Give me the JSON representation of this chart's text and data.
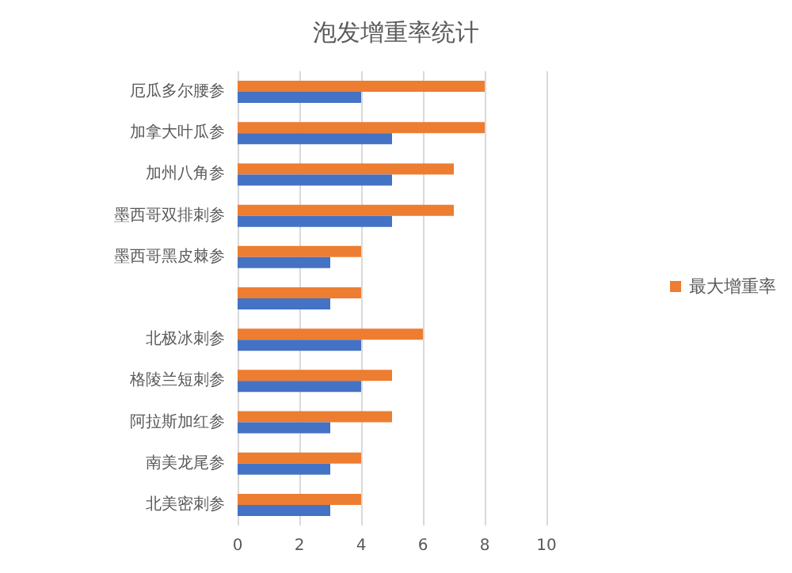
{
  "chart_data": {
    "type": "bar",
    "orientation": "horizontal",
    "title": "泡发增重率统计",
    "categories": [
      "厄瓜多尔腰参",
      "加拿大叶瓜参",
      "加州八角参",
      "墨西哥双排刺参",
      "墨西哥黑皮棘参",
      null,
      "北极冰刺参",
      "格陵兰短刺参",
      "阿拉斯加红参",
      "南美龙尾参",
      "北美密刺参"
    ],
    "series": [
      {
        "name": "最大增重率",
        "color": "#ed7d31",
        "values": [
          8,
          8,
          7,
          7,
          4,
          4,
          6,
          5,
          5,
          4,
          4
        ]
      },
      {
        "color": "#4472c4",
        "values": [
          4,
          5,
          5,
          5,
          3,
          3,
          4,
          4,
          3,
          3,
          3
        ]
      }
    ],
    "xlim": [
      0,
      10
    ],
    "xticks": [
      0,
      2,
      4,
      6,
      8,
      10
    ],
    "grid": "x",
    "legend": "right"
  }
}
